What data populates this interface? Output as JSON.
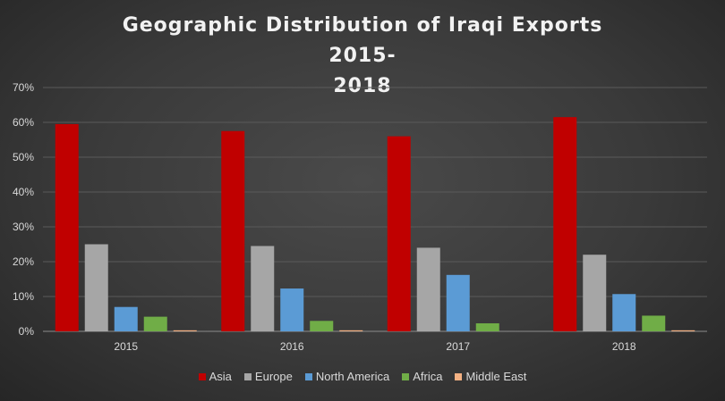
{
  "chart_data": {
    "type": "bar",
    "title": "Geographic Distribution of Iraqi Exports 2015-2018",
    "title_lines": [
      "Geographic Distribution of Iraqi Exports 2015-",
      "2018"
    ],
    "categories": [
      "2015",
      "2016",
      "2017",
      "2018"
    ],
    "series": [
      {
        "name": "Asia",
        "color": "#c00000",
        "values": [
          59.5,
          57.5,
          56.0,
          61.5
        ]
      },
      {
        "name": "Europe",
        "color": "#a6a6a6",
        "values": [
          25.0,
          24.5,
          24.0,
          22.0
        ]
      },
      {
        "name": "North America",
        "color": "#5b9bd5",
        "values": [
          7.0,
          12.3,
          16.2,
          10.7
        ]
      },
      {
        "name": "Africa",
        "color": "#70ad47",
        "values": [
          4.2,
          3.0,
          2.3,
          4.5
        ]
      },
      {
        "name": "Middle East",
        "color": "#f4b183",
        "values": [
          0.3,
          0.3,
          0.0,
          0.3
        ]
      }
    ],
    "yticks": [
      "0%",
      "10%",
      "20%",
      "30%",
      "40%",
      "50%",
      "60%",
      "70%"
    ],
    "ylim": [
      0,
      70
    ],
    "xlabel": "",
    "ylabel": "",
    "grid": true,
    "legend_position": "bottom"
  }
}
